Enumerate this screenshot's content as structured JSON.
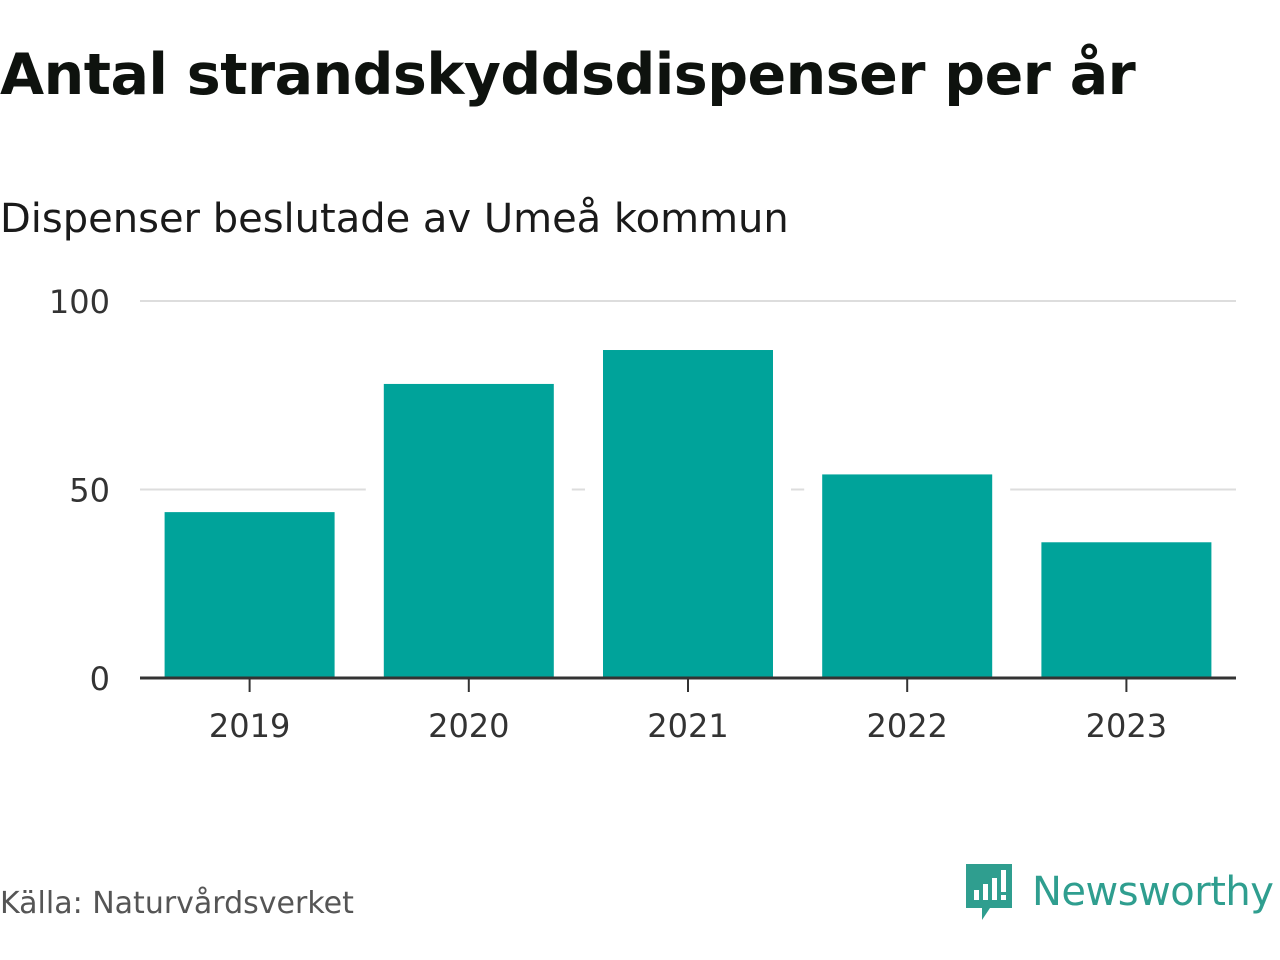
{
  "title": "Antal strandskyddsdispenser per år",
  "subtitle": "Dispenser beslutade av Umeå kommun",
  "source": "Källa: Naturvårdsverket",
  "brand": {
    "name": "Newsworthy",
    "icon": "newsworthy-logo-icon",
    "color": "#2f9e8f"
  },
  "colors": {
    "bar": "#00a39a",
    "grid": "#dddddd",
    "axis": "#333333",
    "tick_text": "#333333"
  },
  "chart_data": {
    "type": "bar",
    "title": "Antal strandskyddsdispenser per år",
    "subtitle": "Dispenser beslutade av Umeå kommun",
    "categories": [
      "2019",
      "2020",
      "2021",
      "2022",
      "2023"
    ],
    "values": [
      44,
      78,
      87,
      54,
      36
    ],
    "xlabel": "",
    "ylabel": "",
    "ylim": [
      0,
      100
    ],
    "yticks": [
      0,
      50,
      100
    ],
    "grid": true,
    "legend": "none"
  }
}
